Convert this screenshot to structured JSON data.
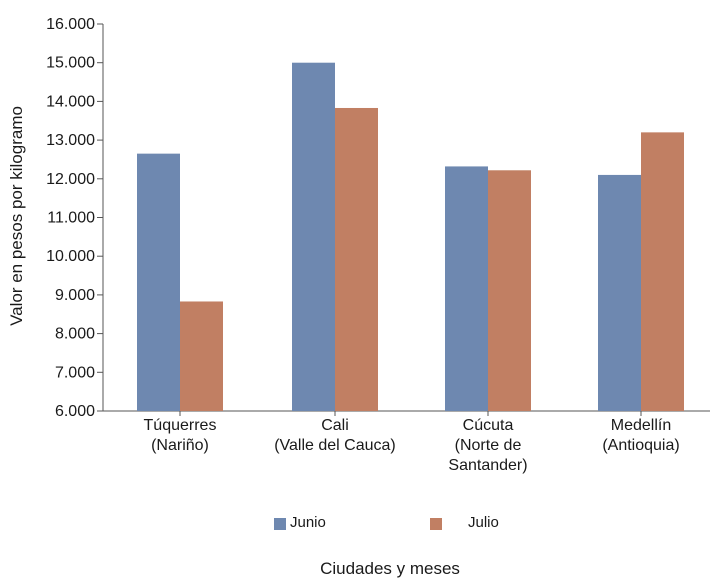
{
  "chart_data": {
    "type": "bar",
    "title": "",
    "xlabel": "Ciudades y meses",
    "ylabel": "Valor en pesos por kilogramo",
    "ylim": [
      6000,
      16000
    ],
    "yticks": [
      "6.000",
      "7.000",
      "8.000",
      "9.000",
      "10.000",
      "11.000",
      "12.000",
      "13.000",
      "14.000",
      "15.000",
      "16.000"
    ],
    "categories": [
      [
        "Túquerres",
        "(Nariño)"
      ],
      [
        "Cali",
        "(Valle del Cauca)"
      ],
      [
        "Cúcuta",
        "(Norte de",
        "Santander)"
      ],
      [
        "Medellín",
        "(Antioquia)"
      ]
    ],
    "series": [
      {
        "name": "Junio",
        "color": "#6e88b0",
        "values": [
          12650,
          15000,
          12320,
          12100
        ]
      },
      {
        "name": "Julio",
        "color": "#c17f63",
        "values": [
          8830,
          13830,
          12220,
          13200
        ]
      }
    ],
    "grid": false,
    "legend": "bottom"
  }
}
